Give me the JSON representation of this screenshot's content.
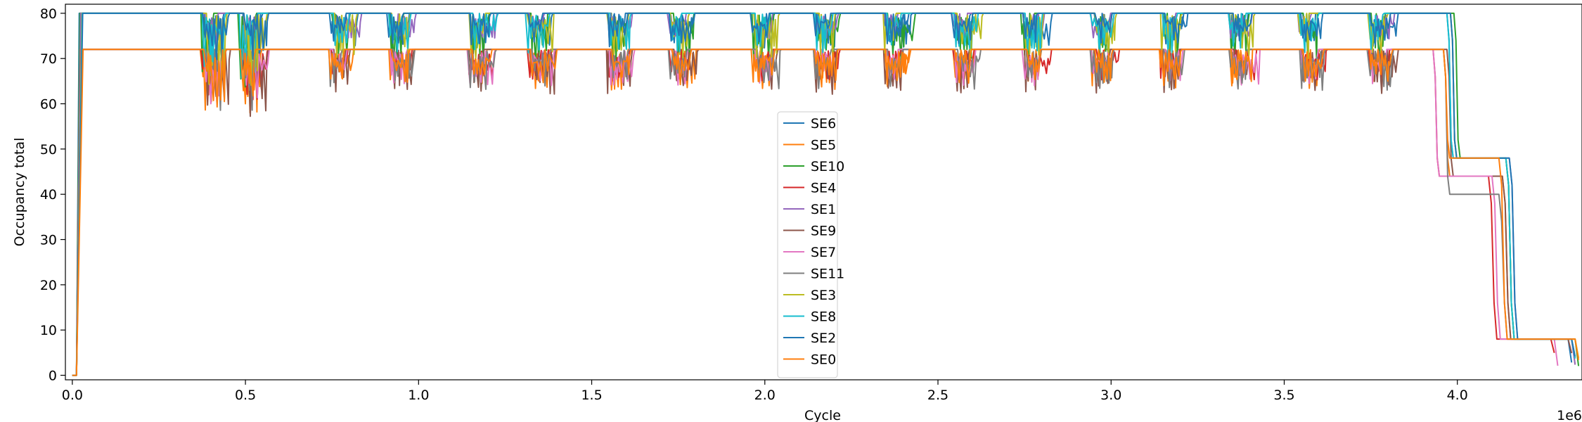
{
  "chart_data": {
    "type": "line",
    "xlabel": "Cycle",
    "ylabel": "Occupancy total",
    "x_offset_label": "1e6",
    "xlim": [
      -0.02,
      4.36
    ],
    "ylim": [
      -1,
      82
    ],
    "xticks": [
      0.0,
      0.5,
      1.0,
      1.5,
      2.0,
      2.5,
      3.0,
      3.5,
      4.0
    ],
    "xtick_labels": [
      "0.0",
      "0.5",
      "1.0",
      "1.5",
      "2.0",
      "2.5",
      "3.0",
      "3.5",
      "4.0"
    ],
    "yticks": [
      0,
      10,
      20,
      30,
      40,
      50,
      60,
      70,
      80
    ],
    "ytick_labels": [
      "0",
      "10",
      "20",
      "30",
      "40",
      "50",
      "60",
      "70",
      "80"
    ],
    "legend_location": "center",
    "dip_windows": [
      0.38,
      0.49,
      0.75,
      0.92,
      1.15,
      1.32,
      1.55,
      1.73,
      1.97,
      2.15,
      2.35,
      2.55,
      2.75,
      2.95,
      3.15,
      3.35,
      3.55,
      3.75
    ],
    "series": [
      {
        "name": "SE6",
        "color": "#1f77b4",
        "plateau": 80,
        "dip_depth": 8,
        "mid_level": 48,
        "drop_start": 3.97,
        "mid_end": 4.16,
        "low_end": 4.33
      },
      {
        "name": "SE5",
        "color": "#ff7f0e",
        "plateau": 72,
        "dip_depth": 9,
        "mid_level": 44,
        "drop_start": 3.96,
        "mid_end": 4.15,
        "low_end": 4.34
      },
      {
        "name": "SE10",
        "color": "#2ca02c",
        "plateau": 80,
        "dip_depth": 12,
        "mid_level": 48,
        "drop_start": 3.99,
        "mid_end": 4.16,
        "low_end": 4.35
      },
      {
        "name": "SE4",
        "color": "#d62728",
        "plateau": 72,
        "dip_depth": 7,
        "mid_level": 44,
        "drop_start": 3.93,
        "mid_end": 4.11,
        "low_end": 4.28
      },
      {
        "name": "SE1",
        "color": "#9467bd",
        "plateau": 80,
        "dip_depth": 6,
        "mid_level": 48,
        "drop_start": 3.98,
        "mid_end": 4.17,
        "low_end": 4.34
      },
      {
        "name": "SE9",
        "color": "#8c564b",
        "plateau": 72,
        "dip_depth": 10,
        "mid_level": 44,
        "drop_start": 3.97,
        "mid_end": 4.15,
        "low_end": 4.33
      },
      {
        "name": "SE7",
        "color": "#e377c2",
        "plateau": 72,
        "dip_depth": 8,
        "mid_level": 44,
        "drop_start": 3.93,
        "mid_end": 4.12,
        "low_end": 4.29
      },
      {
        "name": "SE11",
        "color": "#7f7f7f",
        "plateau": 72,
        "dip_depth": 9,
        "mid_level": 40,
        "drop_start": 3.96,
        "mid_end": 4.14,
        "low_end": 4.34
      },
      {
        "name": "SE3",
        "color": "#bcbd22",
        "plateau": 80,
        "dip_depth": 10,
        "mid_level": 48,
        "drop_start": 3.98,
        "mid_end": 4.16,
        "low_end": 4.35
      },
      {
        "name": "SE8",
        "color": "#17becf",
        "plateau": 80,
        "dip_depth": 9,
        "mid_level": 48,
        "drop_start": 3.97,
        "mid_end": 4.16,
        "low_end": 4.34
      },
      {
        "name": "SE2",
        "color": "#1f77b4",
        "plateau": 80,
        "dip_depth": 7,
        "mid_level": 48,
        "drop_start": 3.98,
        "mid_end": 4.17,
        "low_end": 4.34
      },
      {
        "name": "SE0",
        "color": "#ff7f0e",
        "plateau": 72,
        "dip_depth": 8,
        "mid_level": 48,
        "drop_start": 3.96,
        "mid_end": 4.14,
        "low_end": 4.35
      }
    ]
  }
}
